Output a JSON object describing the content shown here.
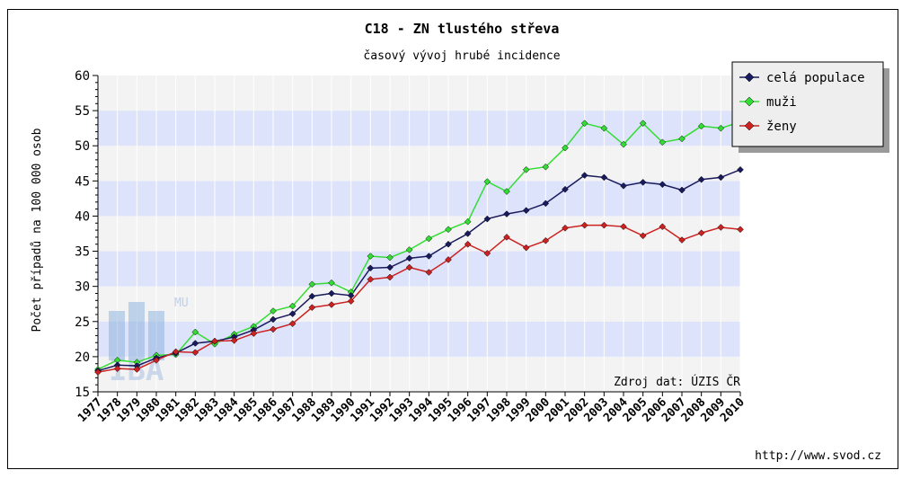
{
  "chart_data": {
    "type": "line",
    "title": "C18 - ZN tlustého střeva",
    "subtitle": "časový vývoj hrubé incidence",
    "ylabel": "Počet případů na 100 000 osob",
    "xlabel": "",
    "ylim": [
      15,
      60
    ],
    "yticks": [
      15,
      20,
      25,
      30,
      35,
      40,
      45,
      50,
      55,
      60
    ],
    "x": [
      1977,
      1978,
      1979,
      1980,
      1981,
      1982,
      1983,
      1984,
      1985,
      1986,
      1987,
      1988,
      1989,
      1990,
      1991,
      1992,
      1993,
      1994,
      1995,
      1996,
      1997,
      1998,
      1999,
      2000,
      2001,
      2002,
      2003,
      2004,
      2005,
      2006,
      2007,
      2008,
      2009,
      2010
    ],
    "legend_position": "top-right",
    "source_note": "Zdroj dat: ÚZIS ČR",
    "url": "http://www.svod.cz",
    "watermark": "IBA MU",
    "series": [
      {
        "name": "celá populace",
        "color": "#1a1a5e",
        "values": [
          18.0,
          18.8,
          18.7,
          19.8,
          20.5,
          21.9,
          22.2,
          22.8,
          23.8,
          25.3,
          26.1,
          28.6,
          29.0,
          28.7,
          32.6,
          32.7,
          34.0,
          34.3,
          36.0,
          37.5,
          39.6,
          40.3,
          40.8,
          41.8,
          43.8,
          45.8,
          45.5,
          44.3,
          44.8,
          44.5,
          43.7,
          45.2,
          45.5,
          46.6
        ]
      },
      {
        "name": "muži",
        "color": "#33dd33",
        "values": [
          18.2,
          19.5,
          19.2,
          20.2,
          20.3,
          23.5,
          21.8,
          23.2,
          24.3,
          26.5,
          27.2,
          30.3,
          30.5,
          29.2,
          34.3,
          34.1,
          35.2,
          36.8,
          38.1,
          39.2,
          44.9,
          43.5,
          46.6,
          47.0,
          49.7,
          53.2,
          52.5,
          50.2,
          53.2,
          50.5,
          51.0,
          52.8,
          52.5,
          53.4
        ]
      },
      {
        "name": "ženy",
        "color": "#cc2222",
        "values": [
          17.8,
          18.3,
          18.2,
          19.5,
          20.7,
          20.6,
          22.2,
          22.3,
          23.3,
          23.9,
          24.7,
          27.0,
          27.4,
          27.9,
          31.0,
          31.3,
          32.7,
          32.0,
          33.8,
          36.0,
          34.7,
          37.0,
          35.5,
          36.5,
          38.3,
          38.7,
          38.7,
          38.5,
          37.2,
          38.5,
          36.6,
          37.6,
          38.4,
          38.1
        ]
      }
    ]
  }
}
